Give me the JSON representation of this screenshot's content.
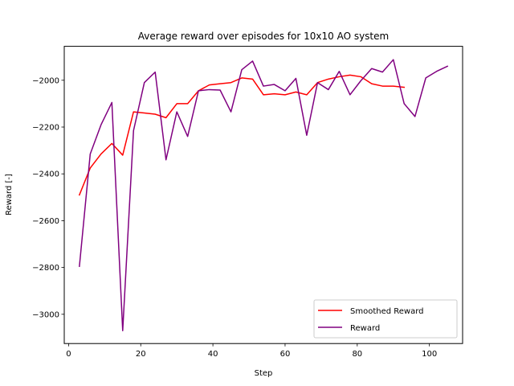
{
  "chart_data": {
    "type": "line",
    "title": "Average reward over episodes for 10x10 AO system",
    "xlabel": "Step",
    "ylabel": "Reward [-]",
    "xlim": [
      -1.2,
      109.2
    ],
    "ylim": [
      -3125,
      -1855
    ],
    "xticks": [
      0,
      20,
      40,
      60,
      80,
      100
    ],
    "yticks": [
      -3000,
      -2800,
      -2600,
      -2400,
      -2200,
      -2000
    ],
    "grid": false,
    "legend_position": "lower-right",
    "series": [
      {
        "name": "Smoothed Reward",
        "color": "#ff0000",
        "x": [
          3,
          6,
          9,
          12,
          15,
          18,
          21,
          24,
          27,
          30,
          33,
          36,
          39,
          42,
          45,
          48,
          51,
          54,
          57,
          60,
          63,
          66,
          69,
          72,
          75,
          78,
          81,
          84,
          87,
          90,
          93
        ],
        "y": [
          -2490,
          -2375,
          -2315,
          -2270,
          -2320,
          -2135,
          -2140,
          -2145,
          -2160,
          -2100,
          -2100,
          -2045,
          -2020,
          -2015,
          -2010,
          -1990,
          -1995,
          -2062,
          -2058,
          -2062,
          -2050,
          -2062,
          -2010,
          -1995,
          -1985,
          -1978,
          -1985,
          -2015,
          -2025,
          -2025,
          -2030
        ]
      },
      {
        "name": "Reward",
        "color": "#800080",
        "x": [
          3,
          6,
          9,
          12,
          15,
          18,
          21,
          24,
          27,
          30,
          33,
          36,
          39,
          42,
          45,
          48,
          51,
          54,
          57,
          60,
          63,
          66,
          69,
          72,
          75,
          78,
          81,
          84,
          87,
          90,
          93,
          96,
          99,
          102,
          105
        ],
        "y": [
          -2795,
          -2315,
          -2190,
          -2095,
          -3070,
          -2215,
          -2010,
          -1965,
          -2340,
          -2135,
          -2240,
          -2045,
          -2040,
          -2042,
          -2135,
          -1955,
          -1918,
          -2025,
          -2018,
          -2045,
          -1992,
          -2235,
          -2010,
          -2040,
          -1962,
          -2062,
          -2002,
          -1950,
          -1965,
          -1912,
          -2100,
          -2155,
          -1990,
          -1962,
          -1940
        ]
      }
    ]
  }
}
